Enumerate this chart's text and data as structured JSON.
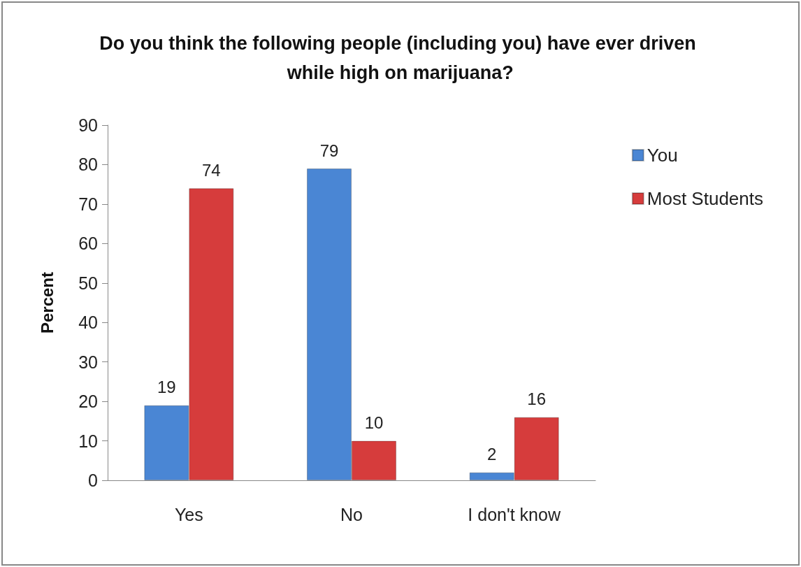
{
  "chart_data": {
    "type": "bar",
    "title": "Do you think the following people (including you) have ever driven while high on marijuana?",
    "ylabel": "Percent",
    "categories": [
      "Yes",
      "No",
      "I don't know"
    ],
    "series": [
      {
        "name": "You",
        "color": "#4a86d4",
        "values": [
          19,
          79,
          2
        ]
      },
      {
        "name": "Most Students",
        "color": "#d63c3c",
        "values": [
          74,
          10,
          16
        ]
      }
    ],
    "ylim": [
      0,
      90
    ],
    "yticks": [
      0,
      10,
      20,
      30,
      40,
      50,
      60,
      70,
      80,
      90
    ],
    "grid": false,
    "legend": "right",
    "data_labels": true
  }
}
